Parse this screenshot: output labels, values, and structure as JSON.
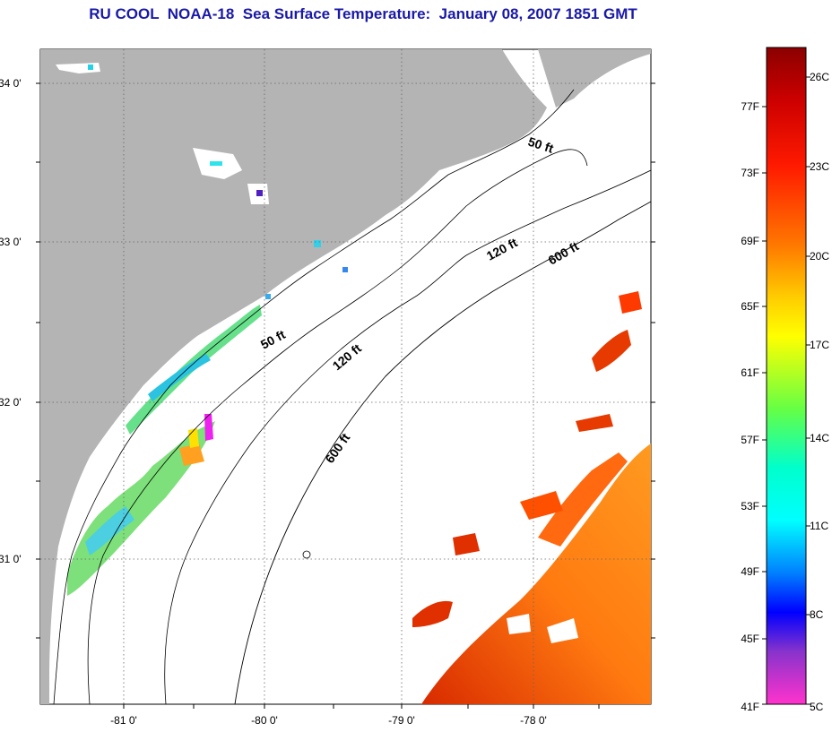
{
  "title": "RU COOL  NOAA-18  Sea Surface Temperature:  January 08, 2007 1851 GMT",
  "map": {
    "lat_labels": [
      "34 0'",
      "33 0'",
      "32 0'",
      "31 0'"
    ],
    "lon_labels": [
      "-81 0'",
      "-80 0'",
      "-79 0'",
      "-78 0'"
    ],
    "land_color": "#b4b4b4",
    "depth_labels": [
      "50 ft",
      "120 ft",
      "600 ft",
      "50 ft",
      "120 ft",
      "600 ft"
    ]
  },
  "colorbar": {
    "fahrenheit_labels": [
      "77F",
      "73F",
      "69F",
      "65F",
      "61F",
      "57F",
      "53F",
      "49F",
      "45F",
      "41F"
    ],
    "celsius_labels": [
      "26C",
      "23C",
      "20C",
      "17C",
      "14C",
      "11C",
      "8C",
      "5C"
    ],
    "colors": [
      "#8b0000",
      "#ff0000",
      "#ff7700",
      "#ffff00",
      "#66ff44",
      "#00ffff",
      "#0000ff",
      "#ff33cc"
    ]
  }
}
